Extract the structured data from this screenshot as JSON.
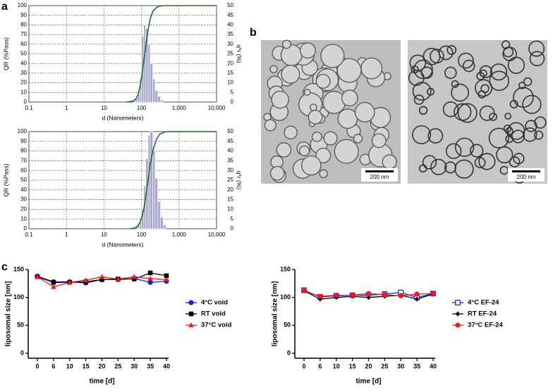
{
  "labels": [
    "a",
    "b",
    "c"
  ],
  "images": [
    {
      "scale_bar": "200 nm"
    },
    {
      "scale_bar": "200 nm"
    }
  ],
  "chart_data": [
    {
      "type": "histogram",
      "xlabel": "d (Nanometers)",
      "ylabel": "QR (%Pass)",
      "y2label": "q*r (%)",
      "xlog": true,
      "xlim": [
        0.1,
        10000
      ],
      "xticks": [
        0.1,
        1,
        10,
        100,
        {
          "value": 1000,
          "label": "1,000"
        },
        {
          "value": 10000,
          "label": "10,000"
        }
      ],
      "ylim": [
        0,
        100
      ],
      "yticks": [
        0,
        10,
        20,
        30,
        40,
        50,
        60,
        70,
        80,
        90,
        100
      ],
      "y2lim": [
        0,
        50
      ],
      "y2ticks": [
        0,
        5,
        10,
        15,
        20,
        25,
        30,
        35,
        40,
        45,
        50
      ],
      "grid": true,
      "color": "#a9a8d0",
      "axis": "y2",
      "bins": [
        60,
        70,
        80,
        90,
        100,
        115,
        130,
        150,
        170,
        200,
        230,
        270,
        320,
        380
      ],
      "values": [
        1,
        2,
        4,
        12,
        34,
        40,
        38,
        30,
        20,
        12,
        6,
        3,
        1
      ],
      "curve": {
        "color": "#1f6b2b",
        "x": [
          40,
          50,
          60,
          70,
          80,
          90,
          100,
          115,
          130,
          150,
          170,
          200,
          250,
          300,
          400,
          500,
          10000
        ],
        "values": [
          0,
          0.5,
          1,
          3,
          7,
          15,
          25,
          42,
          58,
          75,
          86,
          94,
          98,
          99.5,
          100,
          100,
          100
        ]
      }
    },
    {
      "type": "histogram",
      "xlabel": "d (Nanometers)",
      "ylabel": "QR (%Pass)",
      "y2label": "q*r (%)",
      "xlog": true,
      "xlim": [
        0.1,
        10000
      ],
      "xticks": [
        0.1,
        1,
        10,
        100,
        {
          "value": 1000,
          "label": "1,000"
        },
        {
          "value": 10000,
          "label": "10,000"
        }
      ],
      "ylim": [
        0,
        100
      ],
      "yticks": [
        0,
        10,
        20,
        30,
        40,
        50,
        60,
        70,
        80,
        90,
        100
      ],
      "y2lim": [
        0,
        50
      ],
      "y2ticks": [
        0,
        5,
        10,
        15,
        20,
        25,
        30,
        35,
        40,
        45,
        50
      ],
      "grid": true,
      "color": "#a9a8d0",
      "axis": "y2",
      "bins": [
        70,
        80,
        90,
        100,
        115,
        130,
        150,
        170,
        200,
        230,
        270,
        320,
        380,
        450
      ],
      "values": [
        1,
        2,
        4,
        10,
        22,
        36,
        48,
        50,
        40,
        26,
        14,
        6,
        2
      ],
      "curve": {
        "color": "#1f6b2b",
        "x": [
          50,
          60,
          70,
          80,
          90,
          100,
          115,
          130,
          150,
          170,
          200,
          250,
          300,
          400,
          500,
          700,
          10000
        ],
        "values": [
          0,
          0.5,
          1,
          3,
          6,
          11,
          20,
          33,
          50,
          66,
          80,
          92,
          97,
          99.5,
          100,
          100,
          100
        ]
      }
    },
    {
      "type": "line",
      "xlabel": "time [d]",
      "ylabel": "liposomal size [nm]",
      "categories": [
        "0",
        "6",
        "10",
        "15",
        "20",
        "25",
        "30",
        "35",
        "40"
      ],
      "ylim": [
        0,
        150
      ],
      "yticks": [
        0,
        50,
        100,
        150
      ],
      "legend": "right",
      "series": [
        {
          "name": "4°C void",
          "color": "#1c1cd0",
          "marker": "circle",
          "values": [
            138,
            128,
            128,
            126,
            132,
            132,
            134,
            127,
            129
          ]
        },
        {
          "name": "RT void",
          "color": "#000000",
          "marker": "square",
          "values": [
            137,
            127,
            127,
            128,
            132,
            133,
            133,
            144,
            139
          ]
        },
        {
          "name": "37°C void",
          "color": "#e81c1c",
          "marker": "triangle",
          "values": [
            137,
            119,
            127,
            131,
            137,
            133,
            137,
            134,
            132
          ]
        }
      ]
    },
    {
      "type": "line",
      "xlabel": "time [d]",
      "ylabel": "liposomal size [nm]",
      "categories": [
        "0",
        "6",
        "10",
        "15",
        "20",
        "25",
        "30",
        "35",
        "40"
      ],
      "ylim": [
        0,
        150
      ],
      "yticks": [
        0,
        50,
        100,
        150
      ],
      "legend": "right",
      "series": [
        {
          "name": "4°C EF-24",
          "color": "#1c1cd0",
          "marker": "square-open",
          "values": [
            113,
            101,
            103,
            104,
            104,
            106,
            109,
            100,
            107
          ]
        },
        {
          "name": "RT EF-24",
          "color": "#000000",
          "marker": "diamond",
          "values": [
            112,
            97,
            100,
            102,
            100,
            102,
            104,
            97,
            106
          ]
        },
        {
          "name": "37°C EF-24",
          "color": "#e81c1c",
          "marker": "circle",
          "values": [
            112,
            102,
            104,
            104,
            107,
            105,
            103,
            106,
            107
          ]
        }
      ]
    }
  ]
}
